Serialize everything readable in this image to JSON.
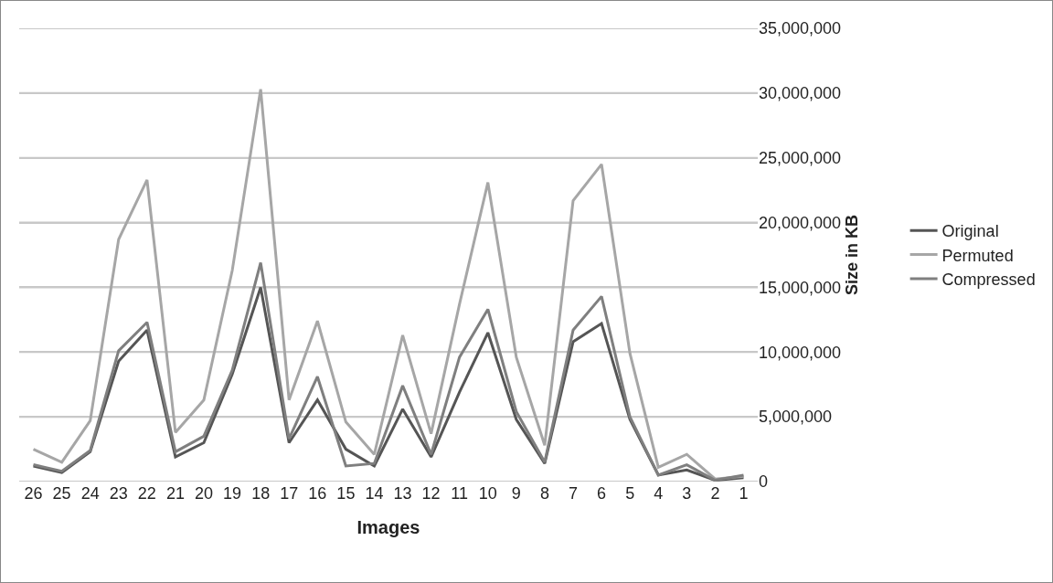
{
  "chart_data": {
    "type": "line",
    "xlabel": "Images",
    "ylabel": "Size in KB",
    "categories": [
      "26",
      "25",
      "24",
      "23",
      "22",
      "21",
      "20",
      "19",
      "18",
      "17",
      "16",
      "15",
      "14",
      "13",
      "12",
      "11",
      "10",
      "9",
      "8",
      "7",
      "6",
      "5",
      "4",
      "3",
      "2",
      "1"
    ],
    "series": [
      {
        "name": "Original",
        "color": "#555555",
        "values": [
          1200000,
          700000,
          2300000,
          9300000,
          11700000,
          1900000,
          3000000,
          8300000,
          15000000,
          3000000,
          6300000,
          2500000,
          1200000,
          5600000,
          1900000,
          6900000,
          11500000,
          4800000,
          1400000,
          10800000,
          12200000,
          4800000,
          500000,
          900000,
          100000,
          300000
        ]
      },
      {
        "name": "Permuted",
        "color": "#a6a6a6",
        "values": [
          2500000,
          1500000,
          4700000,
          18700000,
          23300000,
          3800000,
          6300000,
          16300000,
          30300000,
          6300000,
          12400000,
          4600000,
          2100000,
          11300000,
          3700000,
          13700000,
          23100000,
          9600000,
          2800000,
          21700000,
          24500000,
          9900000,
          1100000,
          2100000,
          200000,
          400000
        ]
      },
      {
        "name": "Compressed",
        "color": "#7f7f7f",
        "values": [
          1300000,
          800000,
          2400000,
          10100000,
          12300000,
          2300000,
          3500000,
          8600000,
          16900000,
          3300000,
          8100000,
          1200000,
          1400000,
          7400000,
          2100000,
          9600000,
          13300000,
          5400000,
          1500000,
          11700000,
          14300000,
          5000000,
          500000,
          1300000,
          100000,
          500000
        ]
      }
    ],
    "ylim": [
      0,
      35000000
    ],
    "yticks": [
      {
        "value": 0,
        "label": "0"
      },
      {
        "value": 5000000,
        "label": "5,000,000"
      },
      {
        "value": 10000000,
        "label": "10,000,000"
      },
      {
        "value": 15000000,
        "label": "15,000,000"
      },
      {
        "value": 20000000,
        "label": "20,000,000"
      },
      {
        "value": 25000000,
        "label": "25,000,000"
      },
      {
        "value": 30000000,
        "label": "30,000,000"
      },
      {
        "value": 35000000,
        "label": "35,000,000"
      }
    ],
    "grid": "y",
    "legend": "right",
    "line_style": "solid",
    "marker": "none"
  }
}
